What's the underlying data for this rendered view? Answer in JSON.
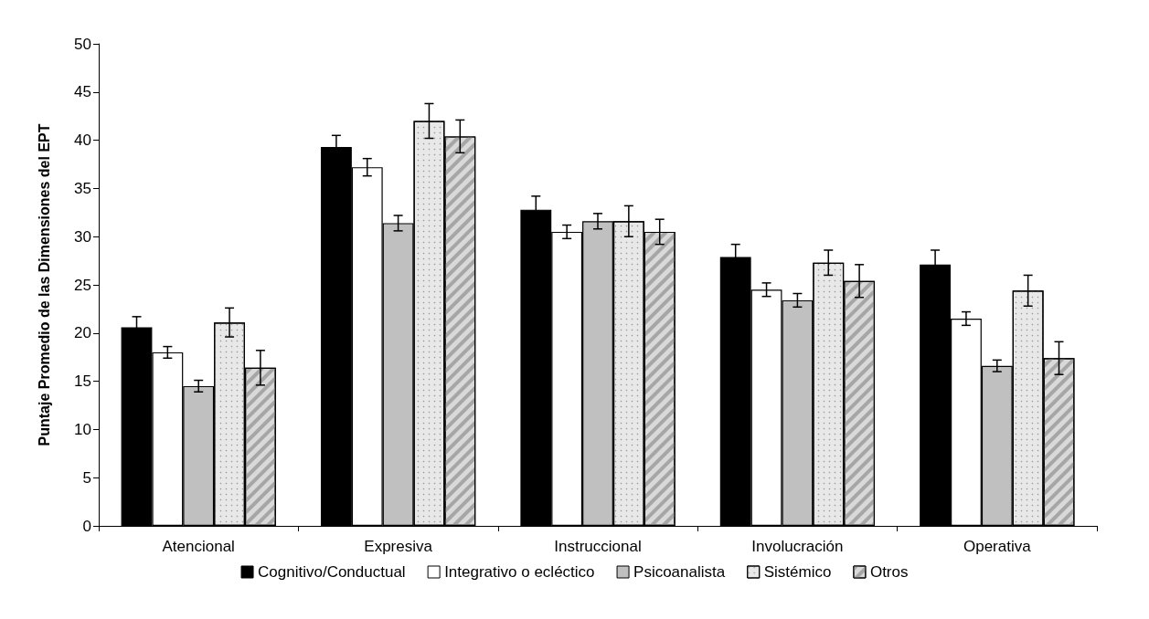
{
  "chart_data": {
    "type": "bar",
    "ylabel": "Puntaje Promedio de las Dimensiones del EPT",
    "categories": [
      "Atencional",
      "Expresiva",
      "Instruccional",
      "Involucración",
      "Operativa"
    ],
    "series": [
      {
        "name": "Cognitivo/Conductual",
        "color": "#000000",
        "values": [
          20.6,
          39.3,
          32.8,
          27.9,
          27.1
        ],
        "errors": [
          1.1,
          1.2,
          1.4,
          1.3,
          1.5
        ]
      },
      {
        "name": "Integrativo o ecléctico",
        "color": "#ffffff",
        "values": [
          18.0,
          37.2,
          30.5,
          24.5,
          21.5
        ],
        "errors": [
          0.6,
          0.9,
          0.7,
          0.7,
          0.7
        ]
      },
      {
        "name": "Psicoanalista",
        "color": "#c0c0c0",
        "values": [
          14.5,
          31.4,
          31.6,
          23.4,
          16.6
        ],
        "errors": [
          0.6,
          0.8,
          0.8,
          0.7,
          0.6
        ]
      },
      {
        "name": "Sistémico",
        "color": "#e8e8e8",
        "values": [
          21.1,
          42.0,
          31.6,
          27.3,
          24.4
        ],
        "errors": [
          1.5,
          1.8,
          1.6,
          1.3,
          1.6
        ]
      },
      {
        "name": "Otros",
        "color": "#d9d9d9",
        "values": [
          16.4,
          40.4,
          30.5,
          25.4,
          17.4
        ],
        "errors": [
          1.8,
          1.7,
          1.3,
          1.7,
          1.7
        ]
      }
    ],
    "ylim": [
      0,
      50
    ],
    "yticks": [
      0,
      5,
      10,
      15,
      20,
      25,
      30,
      35,
      40,
      45,
      50
    ],
    "grid": false,
    "legend": "bottom"
  }
}
